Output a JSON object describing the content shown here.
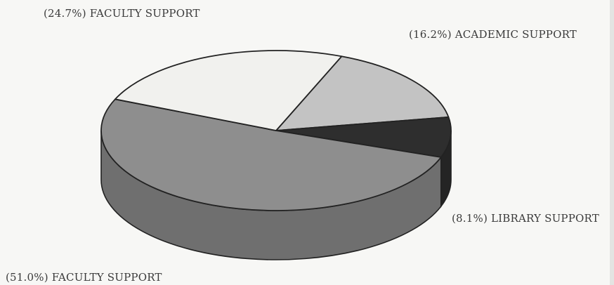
{
  "chart_data": {
    "type": "pie",
    "style": "3d",
    "start": "12 o'clock, clockwise",
    "slices": [
      {
        "label": "(16.2%) ACADEMIC SUPPORT",
        "value": 16.2,
        "color": "#c3c3c3"
      },
      {
        "label": "(8.1%) LIBRARY SUPPORT",
        "value": 8.1,
        "color": "#2e2e2e"
      },
      {
        "label": "(51.0%) FACULTY SUPPORT",
        "value": 51.0,
        "color": "#8e8e8e"
      },
      {
        "label": "(24.7%) FACULTY SUPPORT",
        "value": 24.7,
        "color": "#f1f1ee"
      }
    ]
  }
}
